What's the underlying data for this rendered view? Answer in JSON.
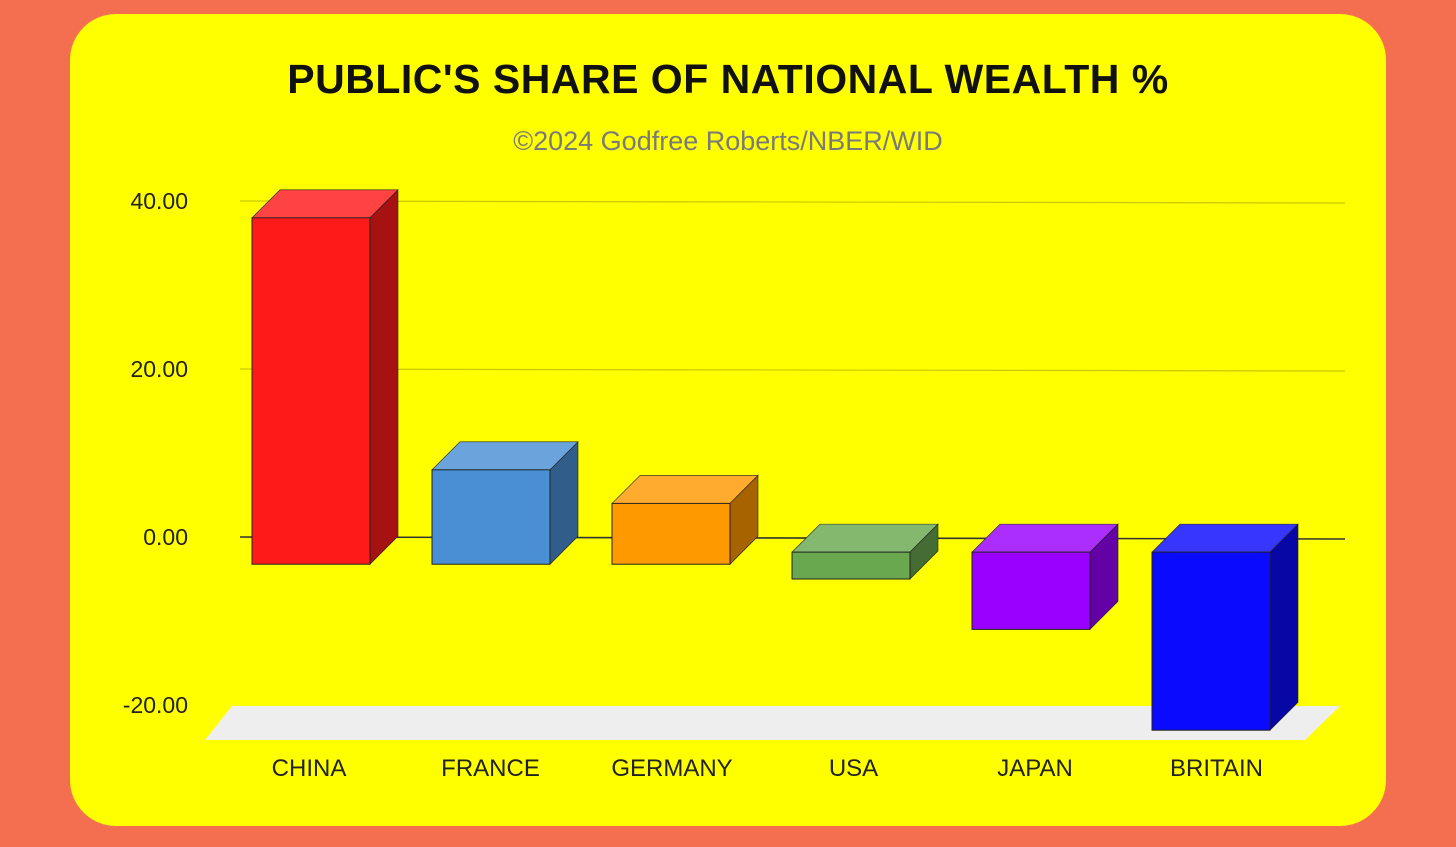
{
  "chart_data": {
    "type": "bar",
    "title": "PUBLIC'S SHARE OF NATIONAL WEALTH %",
    "subtitle": "©2024 Godfree Roberts/NBER/WID",
    "categories": [
      "CHINA",
      "FRANCE",
      "GERMANY",
      "USA",
      "JAPAN",
      "BRITAIN"
    ],
    "values": [
      38.0,
      8.0,
      4.0,
      -5.0,
      -11.0,
      -23.0
    ],
    "colors": [
      "#ff1a1a",
      "#4a8fd4",
      "#ff9900",
      "#6aa84f",
      "#9900ff",
      "#0a0aff"
    ],
    "ylim": [
      -20,
      40
    ],
    "yticks": [
      "40.00",
      "20.00",
      "0.00",
      "-20.00"
    ],
    "ytick_values": [
      40,
      20,
      0,
      -20
    ],
    "grid": true,
    "style": "3d"
  }
}
